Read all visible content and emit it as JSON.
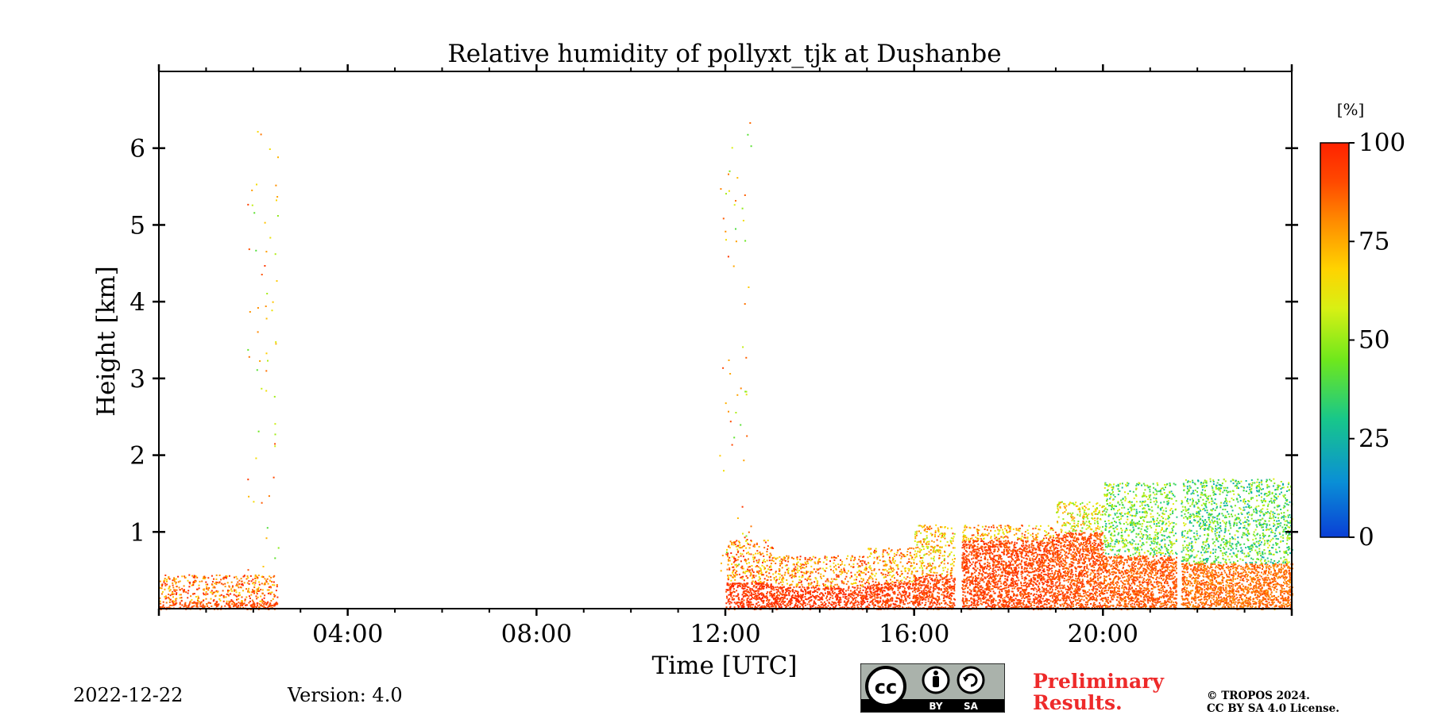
{
  "chart_data": {
    "type": "heatmap",
    "title": "Relative humidity of pollyxt_tjk at Dushanbe",
    "xlabel": "Time [UTC]",
    "ylabel": "Height [km]",
    "xlim_hours": [
      0,
      24
    ],
    "ylim_km": [
      0,
      7
    ],
    "x_ticks": [
      {
        "hour": 4,
        "label": "04:00"
      },
      {
        "hour": 8,
        "label": "08:00"
      },
      {
        "hour": 12,
        "label": "12:00"
      },
      {
        "hour": 16,
        "label": "16:00"
      },
      {
        "hour": 20,
        "label": "20:00"
      }
    ],
    "y_ticks": [
      {
        "value": 1,
        "label": "1"
      },
      {
        "value": 2,
        "label": "2"
      },
      {
        "value": 3,
        "label": "3"
      },
      {
        "value": 4,
        "label": "4"
      },
      {
        "value": 5,
        "label": "5"
      },
      {
        "value": 6,
        "label": "6"
      }
    ],
    "colorbar": {
      "unit_label": "[%]",
      "range": [
        0,
        100
      ],
      "ticks": [
        {
          "value": 0,
          "label": "0"
        },
        {
          "value": 25,
          "label": "25"
        },
        {
          "value": 50,
          "label": "50"
        },
        {
          "value": 75,
          "label": "75"
        },
        {
          "value": 100,
          "label": "100"
        }
      ],
      "colors": [
        "#0a3fd6",
        "#0aa3d6",
        "#1fcf6a",
        "#7ef011",
        "#f0f014",
        "#ffa500",
        "#ff5a00",
        "#ff2200"
      ]
    },
    "segments": [
      {
        "start_hour": 0.0,
        "end_hour": 2.5,
        "top_km": 0.45,
        "dense_top_km": 0.1,
        "rh_mean": 90,
        "rh_upper": 85
      },
      {
        "start_hour": 12.0,
        "end_hour": 13.0,
        "top_km": 0.9,
        "dense_top_km": 0.35,
        "rh_mean": 95,
        "rh_upper": 80
      },
      {
        "start_hour": 13.0,
        "end_hour": 15.0,
        "top_km": 0.7,
        "dense_top_km": 0.3,
        "rh_mean": 95,
        "rh_upper": 80
      },
      {
        "start_hour": 15.0,
        "end_hour": 16.0,
        "top_km": 0.8,
        "dense_top_km": 0.35,
        "rh_mean": 93,
        "rh_upper": 78
      },
      {
        "start_hour": 16.0,
        "end_hour": 16.85,
        "top_km": 1.1,
        "dense_top_km": 0.45,
        "rh_mean": 92,
        "rh_upper": 70
      },
      {
        "start_hour": 17.0,
        "end_hour": 19.0,
        "top_km": 1.1,
        "dense_top_km": 0.9,
        "rh_mean": 92,
        "rh_upper": 75
      },
      {
        "start_hour": 19.0,
        "end_hour": 20.0,
        "top_km": 1.4,
        "dense_top_km": 1.0,
        "rh_mean": 90,
        "rh_upper": 62
      },
      {
        "start_hour": 20.0,
        "end_hour": 21.55,
        "top_km": 1.65,
        "dense_top_km": 0.7,
        "rh_mean": 88,
        "rh_upper": 45
      },
      {
        "start_hour": 21.65,
        "end_hour": 24.0,
        "top_km": 1.7,
        "dense_top_km": 0.6,
        "rh_mean": 85,
        "rh_upper": 40
      }
    ],
    "data_gaps_hours": [
      [
        2.5,
        12.0
      ],
      [
        16.85,
        17.0
      ],
      [
        21.55,
        21.65
      ]
    ]
  },
  "footer": {
    "date": "2022-12-22",
    "version": "Version: 4.0",
    "preliminary_line1": "Preliminary",
    "preliminary_line2": "Results.",
    "copyright_line1": "© TROPOS 2024.",
    "copyright_line2": "CC BY SA 4.0 License.",
    "license_logo_by": "BY",
    "license_logo_sa": "SA",
    "license_logo_cc": "cc"
  }
}
